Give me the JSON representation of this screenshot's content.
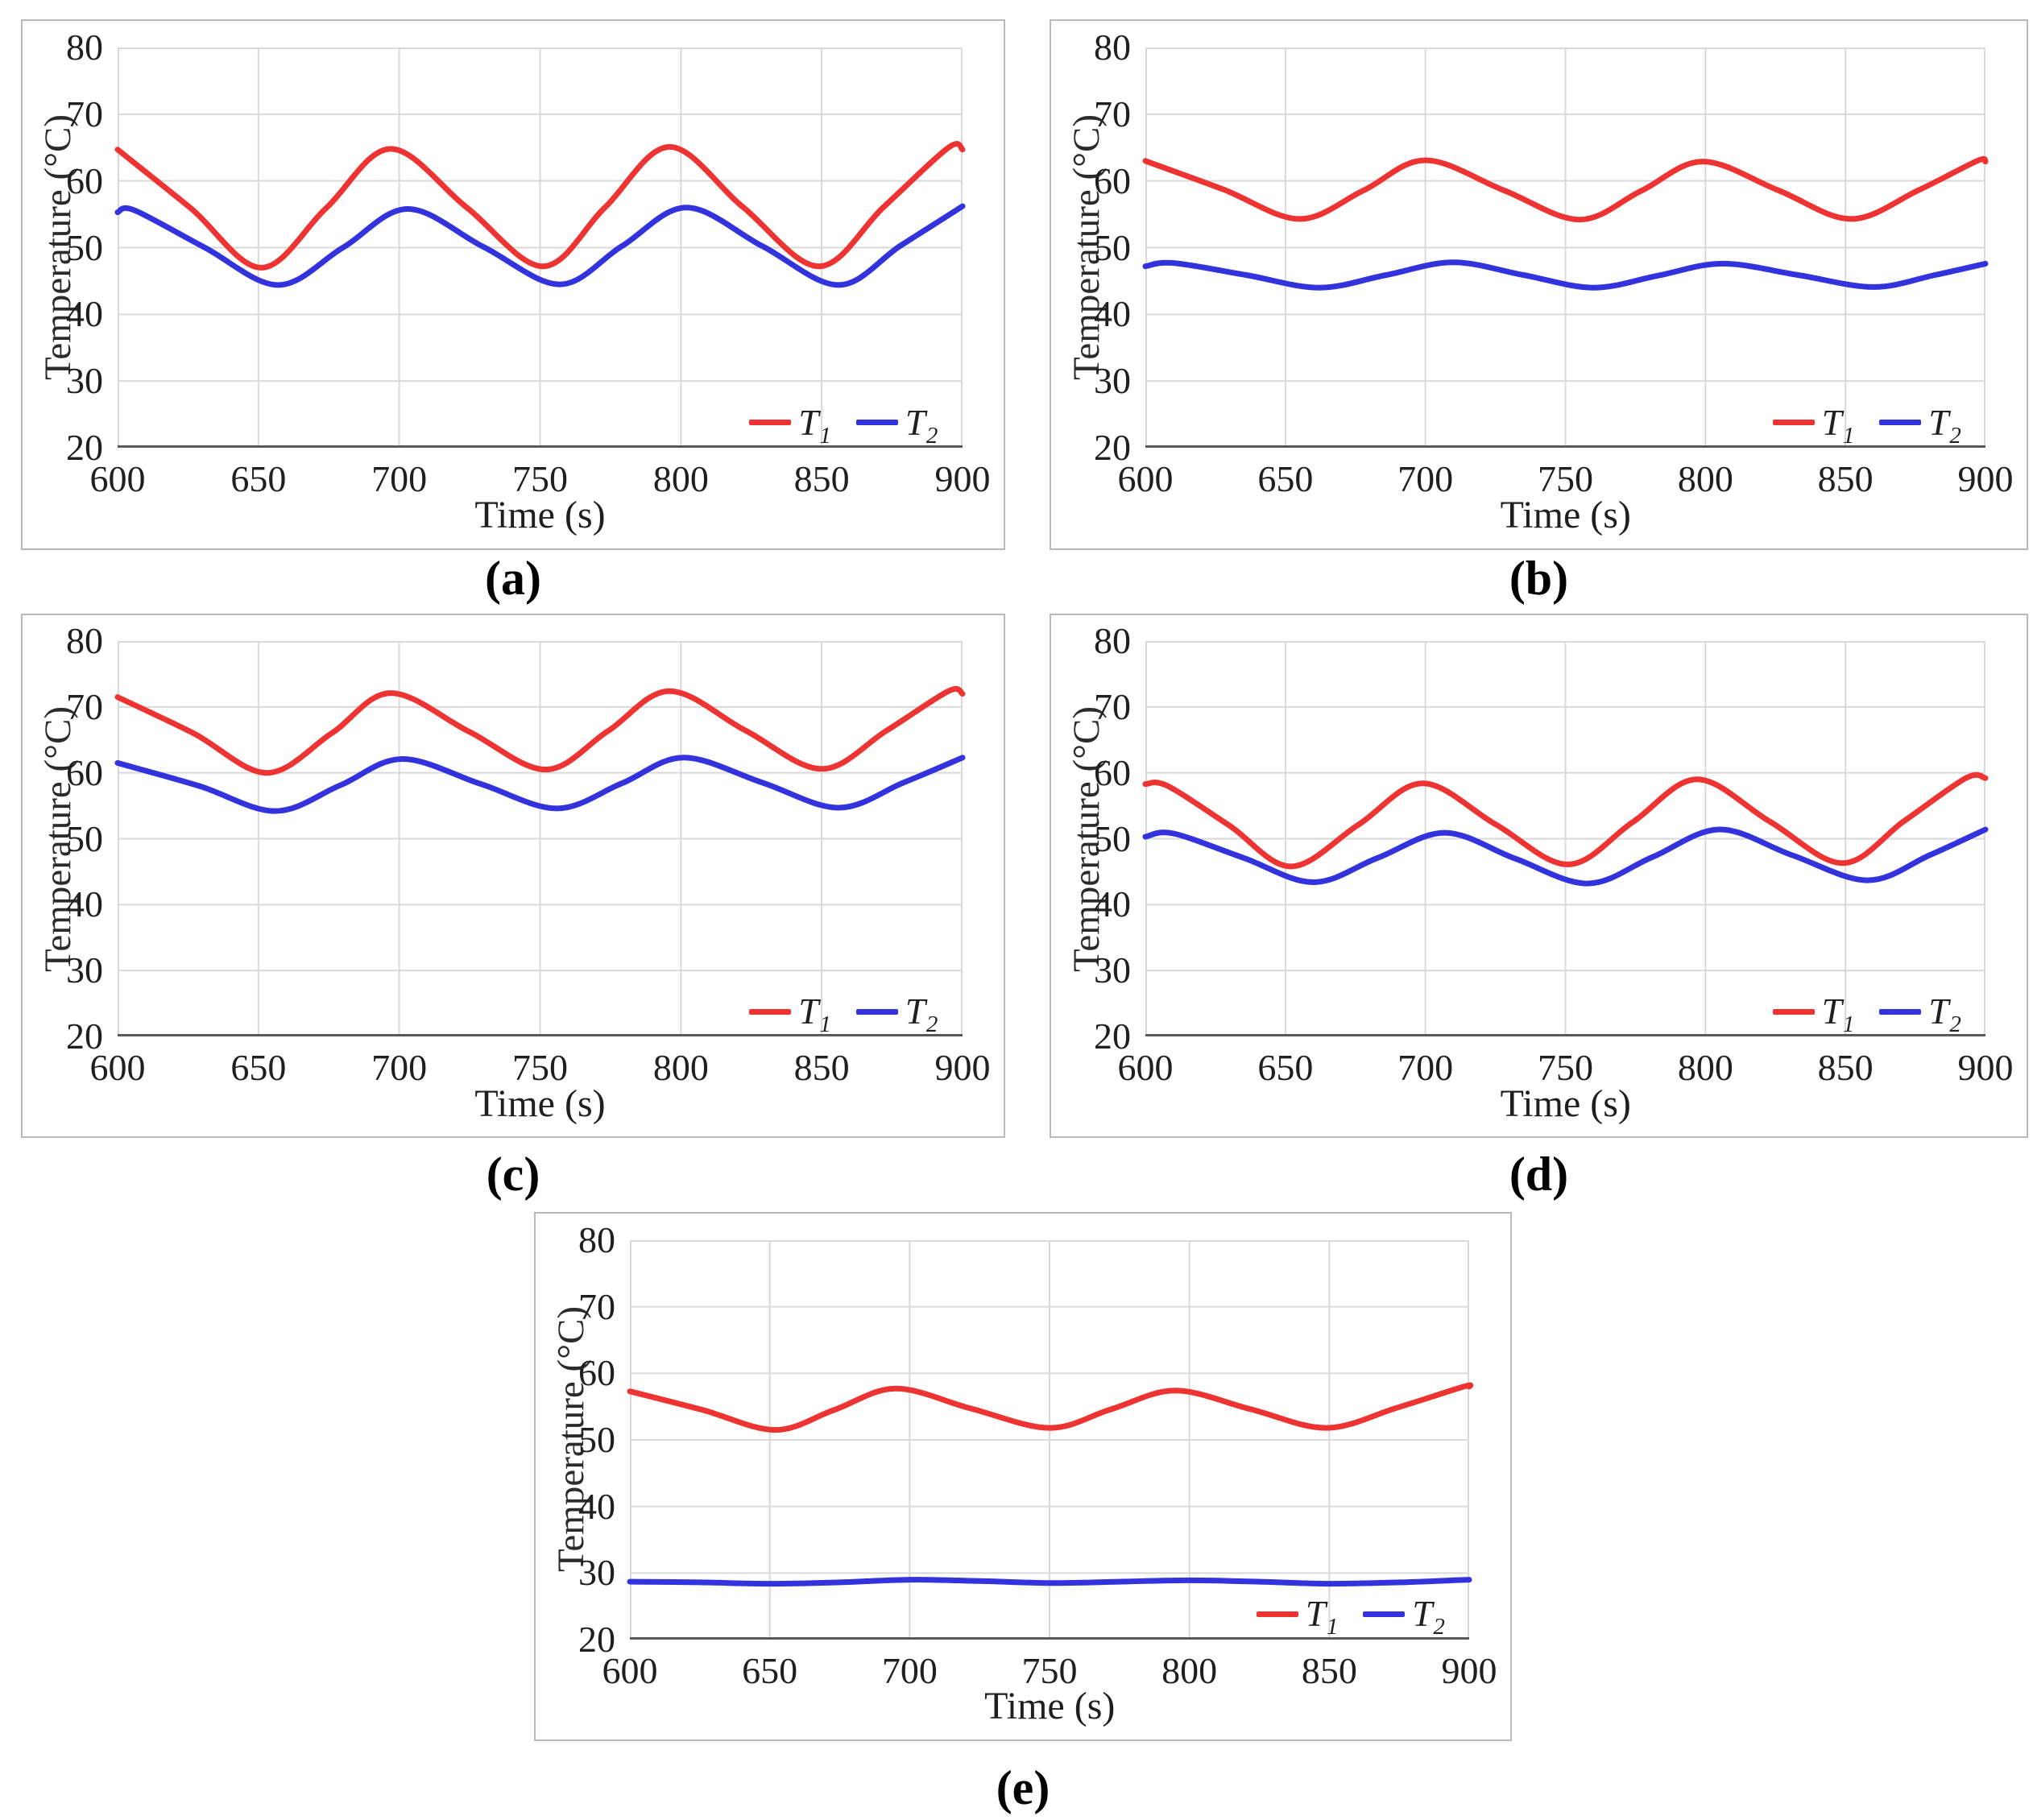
{
  "chart_data": {
    "type": "line",
    "figure_description": "Five panels (a)-(e) of measured temperatures T1 and T2 oscillating over time",
    "grid_color": "#d9d9d9",
    "axis_color": "#595959",
    "panels": [
      {
        "id": "a",
        "caption": "(a)",
        "xlabel": "Time (s)",
        "ylabel": "Temperature (°C)",
        "xlim": [
          600,
          900
        ],
        "ylim": [
          20,
          80
        ],
        "x_ticks": [
          600,
          650,
          700,
          750,
          800,
          850,
          900
        ],
        "y_ticks": [
          20,
          30,
          40,
          50,
          60,
          70,
          80
        ],
        "grid": true,
        "legend": {
          "position": "inside-bottom-right",
          "items": [
            "T1",
            "T2"
          ]
        },
        "series": [
          {
            "name": "T1",
            "label": {
              "base": "T",
              "sub": "1"
            },
            "color": "#ee3433",
            "points": [
              [
                600,
                64.7
              ],
              [
                626,
                55.9
              ],
              [
                651,
                47.0
              ],
              [
                674,
                55.9
              ],
              [
                697,
                64.8
              ],
              [
                724,
                56.0
              ],
              [
                751,
                47.2
              ],
              [
                773,
                56.0
              ],
              [
                796,
                65.1
              ],
              [
                822,
                56.1
              ],
              [
                849,
                47.2
              ],
              [
                872,
                56.1
              ],
              [
                895,
                65.0
              ],
              [
                900,
                64.7
              ]
            ]
          },
          {
            "name": "T2",
            "label": {
              "base": "T",
              "sub": "2"
            },
            "color": "#3333dd",
            "points": [
              [
                600,
                55.3
              ],
              [
                606,
                55.6
              ],
              [
                631,
                50.0
              ],
              [
                657,
                44.4
              ],
              [
                680,
                50.0
              ],
              [
                703,
                55.8
              ],
              [
                730,
                50.1
              ],
              [
                757,
                44.5
              ],
              [
                779,
                50.2
              ],
              [
                802,
                56.0
              ],
              [
                829,
                50.2
              ],
              [
                856,
                44.4
              ],
              [
                878,
                50.3
              ],
              [
                900,
                56.2
              ]
            ]
          }
        ]
      },
      {
        "id": "b",
        "caption": "(b)",
        "xlabel": "Time (s)",
        "ylabel": "Temperature (°C)",
        "xlim": [
          600,
          900
        ],
        "ylim": [
          20,
          80
        ],
        "x_ticks": [
          600,
          650,
          700,
          750,
          800,
          850,
          900
        ],
        "y_ticks": [
          20,
          30,
          40,
          50,
          60,
          70,
          80
        ],
        "grid": true,
        "legend": {
          "position": "inside-bottom-right",
          "items": [
            "T1",
            "T2"
          ]
        },
        "series": [
          {
            "name": "T1",
            "label": {
              "base": "T",
              "sub": "1"
            },
            "color": "#ee3433",
            "points": [
              [
                600,
                63.0
              ],
              [
                628,
                58.7
              ],
              [
                655,
                54.3
              ],
              [
                678,
                58.6
              ],
              [
                700,
                63.1
              ],
              [
                728,
                58.6
              ],
              [
                755,
                54.2
              ],
              [
                777,
                58.5
              ],
              [
                799,
                62.9
              ],
              [
                826,
                58.6
              ],
              [
                852,
                54.3
              ],
              [
                876,
                58.6
              ],
              [
                897,
                63.0
              ],
              [
                900,
                62.9
              ]
            ]
          },
          {
            "name": "T2",
            "label": {
              "base": "T",
              "sub": "2"
            },
            "color": "#3333dd",
            "points": [
              [
                600,
                47.2
              ],
              [
                610,
                47.7
              ],
              [
                636,
                45.9
              ],
              [
                662,
                44.0
              ],
              [
                686,
                45.9
              ],
              [
                710,
                47.8
              ],
              [
                735,
                45.9
              ],
              [
                760,
                44.0
              ],
              [
                783,
                45.8
              ],
              [
                806,
                47.6
              ],
              [
                833,
                45.9
              ],
              [
                860,
                44.1
              ],
              [
                882,
                45.9
              ],
              [
                900,
                47.6
              ]
            ]
          }
        ]
      },
      {
        "id": "c",
        "caption": "(c)",
        "xlabel": "Time (s)",
        "ylabel": "Temperature (°C)",
        "xlim": [
          600,
          900
        ],
        "ylim": [
          20,
          80
        ],
        "x_ticks": [
          600,
          650,
          700,
          750,
          800,
          850,
          900
        ],
        "y_ticks": [
          20,
          30,
          40,
          50,
          60,
          70,
          80
        ],
        "grid": true,
        "legend": {
          "position": "inside-bottom-right",
          "items": [
            "T1",
            "T2"
          ]
        },
        "series": [
          {
            "name": "T1",
            "label": {
              "base": "T",
              "sub": "1"
            },
            "color": "#ee3433",
            "points": [
              [
                600,
                71.5
              ],
              [
                627,
                66.0
              ],
              [
                653,
                60.0
              ],
              [
                676,
                66.0
              ],
              [
                697,
                72.1
              ],
              [
                725,
                66.2
              ],
              [
                752,
                60.5
              ],
              [
                774,
                66.3
              ],
              [
                796,
                72.4
              ],
              [
                823,
                66.4
              ],
              [
                850,
                60.6
              ],
              [
                873,
                66.4
              ],
              [
                895,
                72.4
              ],
              [
                900,
                72.0
              ]
            ]
          },
          {
            "name": "T2",
            "label": {
              "base": "T",
              "sub": "2"
            },
            "color": "#3333dd",
            "points": [
              [
                600,
                61.5
              ],
              [
                629,
                58.0
              ],
              [
                656,
                54.2
              ],
              [
                679,
                58.1
              ],
              [
                701,
                62.1
              ],
              [
                729,
                58.3
              ],
              [
                756,
                54.6
              ],
              [
                779,
                58.4
              ],
              [
                801,
                62.3
              ],
              [
                829,
                58.5
              ],
              [
                856,
                54.7
              ],
              [
                879,
                58.5
              ],
              [
                900,
                62.3
              ]
            ]
          }
        ]
      },
      {
        "id": "d",
        "caption": "(d)",
        "xlabel": "Time (s)",
        "ylabel": "Temperature (°C)",
        "xlim": [
          600,
          900
        ],
        "ylim": [
          20,
          80
        ],
        "x_ticks": [
          600,
          650,
          700,
          750,
          800,
          850,
          900
        ],
        "y_ticks": [
          20,
          30,
          40,
          50,
          60,
          70,
          80
        ],
        "grid": true,
        "legend": {
          "position": "inside-bottom-right",
          "items": [
            "T1",
            "T2"
          ]
        },
        "series": [
          {
            "name": "T1",
            "label": {
              "base": "T",
              "sub": "1"
            },
            "color": "#ee3433",
            "points": [
              [
                600,
                58.3
              ],
              [
                608,
                58.0
              ],
              [
                630,
                52.0
              ],
              [
                652,
                45.8
              ],
              [
                676,
                52.1
              ],
              [
                699,
                58.4
              ],
              [
                725,
                52.2
              ],
              [
                751,
                46.1
              ],
              [
                774,
                52.5
              ],
              [
                797,
                59.0
              ],
              [
                823,
                52.6
              ],
              [
                849,
                46.3
              ],
              [
                871,
                52.7
              ],
              [
                893,
                59.2
              ],
              [
                900,
                59.2
              ]
            ]
          },
          {
            "name": "T2",
            "label": {
              "base": "T",
              "sub": "2"
            },
            "color": "#3333dd",
            "points": [
              [
                600,
                50.3
              ],
              [
                610,
                50.8
              ],
              [
                635,
                47.1
              ],
              [
                660,
                43.4
              ],
              [
                683,
                47.1
              ],
              [
                707,
                50.9
              ],
              [
                732,
                47.0
              ],
              [
                758,
                43.2
              ],
              [
                781,
                47.2
              ],
              [
                805,
                51.4
              ],
              [
                831,
                47.5
              ],
              [
                858,
                43.7
              ],
              [
                880,
                47.5
              ],
              [
                900,
                51.4
              ]
            ]
          }
        ]
      },
      {
        "id": "e",
        "caption": "(e)",
        "xlabel": "Time (s)",
        "ylabel": "Temperature (°C)",
        "xlim": [
          600,
          900
        ],
        "ylim": [
          20,
          80
        ],
        "x_ticks": [
          600,
          650,
          700,
          750,
          800,
          850,
          900
        ],
        "y_ticks": [
          20,
          30,
          40,
          50,
          60,
          70,
          80
        ],
        "grid": true,
        "legend": {
          "position": "inside-bottom-right",
          "items": [
            "T1",
            "T2"
          ]
        },
        "series": [
          {
            "name": "T1",
            "label": {
              "base": "T",
              "sub": "1"
            },
            "color": "#ee3433",
            "points": [
              [
                600,
                57.3
              ],
              [
                626,
                54.5
              ],
              [
                652,
                51.5
              ],
              [
                673,
                54.5
              ],
              [
                695,
                57.7
              ],
              [
                722,
                54.7
              ],
              [
                750,
                51.8
              ],
              [
                772,
                54.6
              ],
              [
                795,
                57.4
              ],
              [
                822,
                54.6
              ],
              [
                849,
                51.8
              ],
              [
                874,
                54.8
              ],
              [
                898,
                58.0
              ],
              [
                900,
                58.0
              ]
            ]
          },
          {
            "name": "T2",
            "label": {
              "base": "T",
              "sub": "2"
            },
            "color": "#3333dd",
            "points": [
              [
                600,
                28.7
              ],
              [
                625,
                28.6
              ],
              [
                650,
                28.4
              ],
              [
                675,
                28.6
              ],
              [
                700,
                29.0
              ],
              [
                725,
                28.8
              ],
              [
                750,
                28.5
              ],
              [
                775,
                28.7
              ],
              [
                800,
                28.9
              ],
              [
                825,
                28.7
              ],
              [
                850,
                28.4
              ],
              [
                875,
                28.6
              ],
              [
                900,
                29.0
              ]
            ]
          }
        ]
      }
    ]
  }
}
